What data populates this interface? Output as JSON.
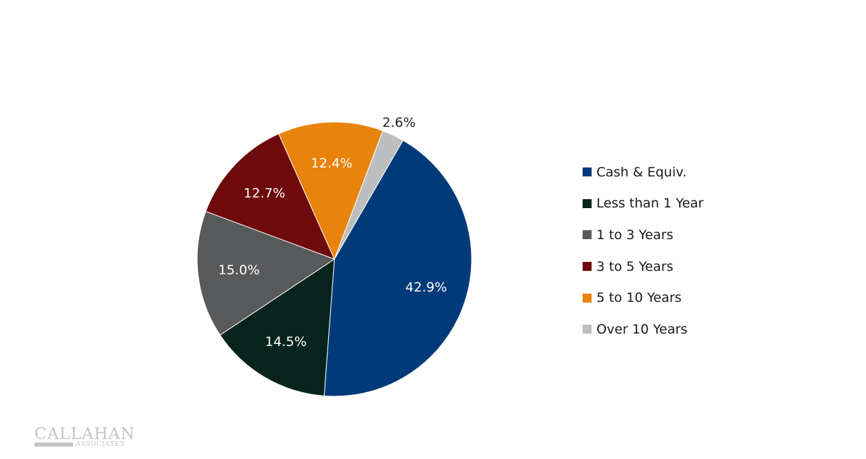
{
  "chart_data": {
    "type": "pie",
    "slices": [
      {
        "label": "Cash & Equiv.",
        "value": 42.9,
        "display": "42.9%",
        "color": "#003a78"
      },
      {
        "label": "Less than 1 Year",
        "value": 14.5,
        "display": "14.5%",
        "color": "#06241c"
      },
      {
        "label": "1 to 3 Years",
        "value": 15.0,
        "display": "15.0%",
        "color": "#58595b"
      },
      {
        "label": "3 to 5 Years",
        "value": 12.7,
        "display": "12.7%",
        "color": "#6e0a0b"
      },
      {
        "label": "5 to 10 Years",
        "value": 12.4,
        "display": "12.4%",
        "color": "#e8830c"
      },
      {
        "label": "Over 10 Years",
        "value": 2.6,
        "display": "2.6%",
        "color": "#bdbec0"
      }
    ],
    "start_angle_deg": 30,
    "direction": "clockwise",
    "legend_position": "right"
  },
  "logo": {
    "name": "CALLAHAN",
    "sub": "ASSOCIATES"
  }
}
